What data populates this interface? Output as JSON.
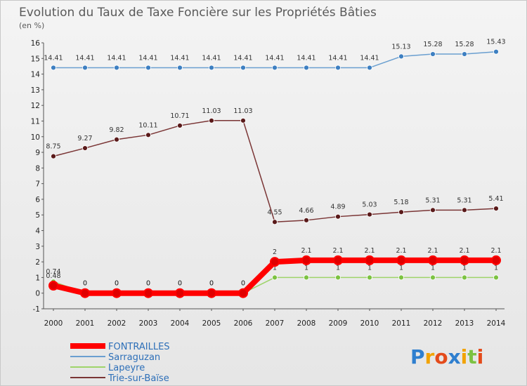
{
  "chart_data": {
    "type": "line",
    "title": "Evolution du Taux de Taxe Foncière sur les Propriétés Bâties",
    "subtitle": "(en %)",
    "x": [
      2000,
      2001,
      2002,
      2003,
      2004,
      2005,
      2006,
      2007,
      2008,
      2009,
      2010,
      2011,
      2012,
      2013,
      2014
    ],
    "x_tick_labels": [
      "2000",
      "2001",
      "2002",
      "2003",
      "2004",
      "2005",
      "2006",
      "2007",
      "2008",
      "2009",
      "2010",
      "2011",
      "2012",
      "2013",
      "2014"
    ],
    "ylim": [
      -1,
      16
    ],
    "y_ticks": [
      -1,
      0,
      1,
      2,
      3,
      4,
      5,
      6,
      7,
      8,
      9,
      10,
      11,
      12,
      13,
      14,
      15,
      16
    ],
    "grid": false,
    "legend_position": "bottom-left",
    "series": [
      {
        "name": "Sarraguzan",
        "color": "#6a9fd0",
        "marker_color": "#3d7fc1",
        "values": [
          14.41,
          14.41,
          14.41,
          14.41,
          14.41,
          14.41,
          14.41,
          14.41,
          14.41,
          14.41,
          14.41,
          15.13,
          15.28,
          15.28,
          15.43
        ],
        "labels": [
          "14.41",
          "14.41",
          "14.41",
          "14.41",
          "14.41",
          "14.41",
          "14.41",
          "14.41",
          "14.41",
          "14.41",
          "14.41",
          "15.13",
          "15.28",
          "15.28",
          "15.43"
        ]
      },
      {
        "name": "Trie-sur-Baïse",
        "color": "#7a3535",
        "marker_color": "#5a1a1a",
        "values": [
          8.75,
          9.27,
          9.82,
          10.11,
          10.71,
          11.03,
          11.03,
          4.55,
          4.66,
          4.89,
          5.03,
          5.18,
          5.31,
          5.31,
          5.41
        ],
        "labels": [
          "8.75",
          "9.27",
          "9.82",
          "10.11",
          "10.71",
          "11.03",
          "11.03",
          "4.55",
          "4.66",
          "4.89",
          "5.03",
          "5.18",
          "5.31",
          "5.31",
          "5.41"
        ]
      },
      {
        "name": "Lapeyre",
        "color": "#9ed46a",
        "marker_color": "#7cc242",
        "values": [
          0.74,
          0,
          0,
          0,
          0,
          0,
          0,
          1,
          1,
          1,
          1,
          1,
          1,
          1,
          1
        ],
        "labels": [
          "0.74",
          "0",
          "0",
          "0",
          "0",
          "0",
          "0",
          "1",
          "1",
          "1",
          "1",
          "1",
          "1",
          "1",
          "1"
        ]
      },
      {
        "name": "FONTRAILLES",
        "color": "#ff0000",
        "marker_color": "#e00000",
        "values": [
          0.48,
          0,
          0,
          0,
          0,
          0,
          0,
          2,
          2.1,
          2.1,
          2.1,
          2.1,
          2.1,
          2.1,
          2.1
        ],
        "labels": [
          "0.48",
          "0",
          "0",
          "0",
          "0",
          "0",
          "0",
          "2",
          "2.1",
          "2.1",
          "2.1",
          "2.1",
          "2.1",
          "2.1",
          "2.1"
        ]
      }
    ],
    "legend": [
      {
        "name": "FONTRAILLES",
        "color": "#ff0000"
      },
      {
        "name": "Sarraguzan",
        "color": "#6a9fd0"
      },
      {
        "name": "Lapeyre",
        "color": "#9ed46a"
      },
      {
        "name": "Trie-sur-Baïse",
        "color": "#7a3535"
      }
    ]
  },
  "branding": {
    "logo_text": "Proxiti"
  }
}
